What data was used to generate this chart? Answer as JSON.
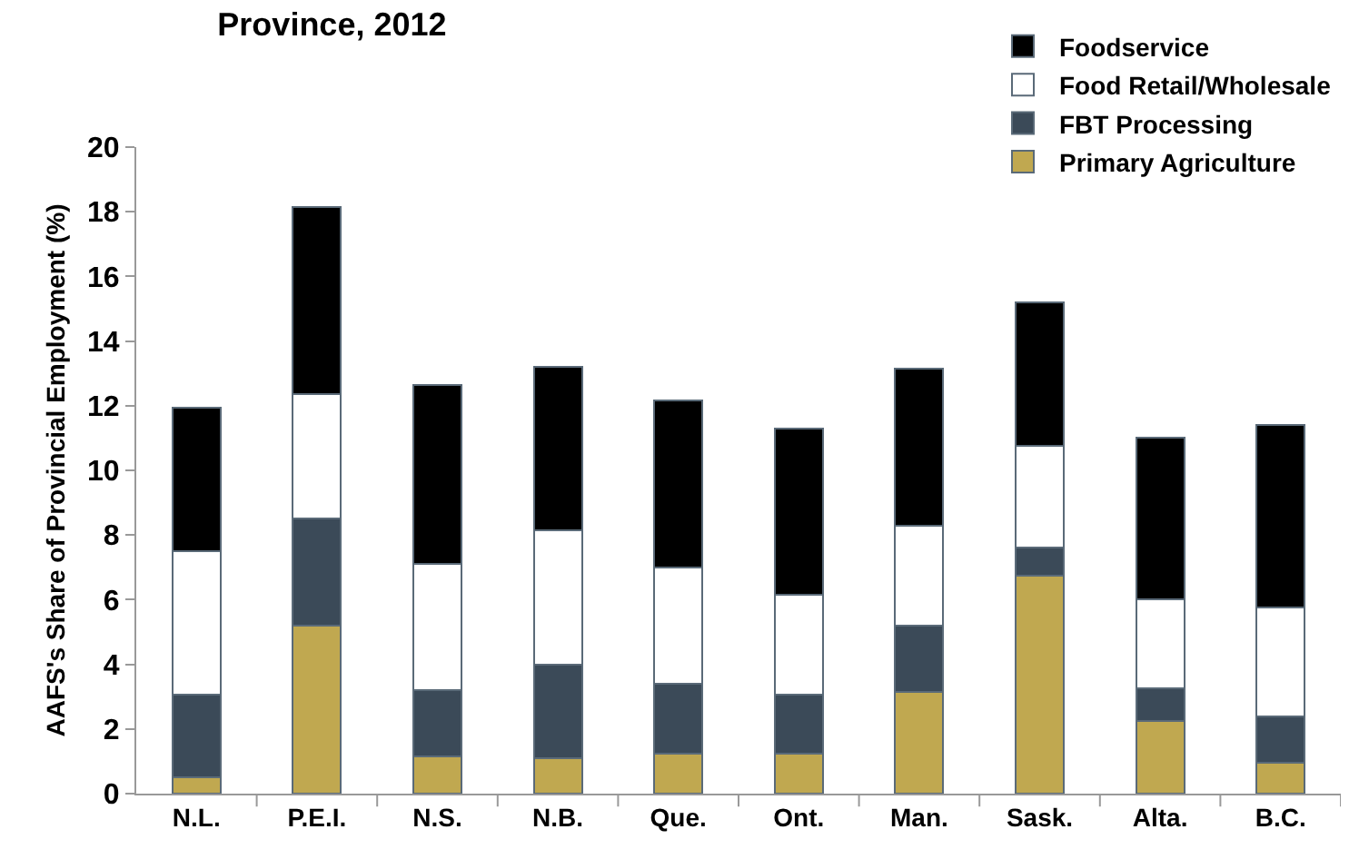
{
  "chart_data": {
    "type": "bar",
    "title": "Province, 2012",
    "ylabel": "AAFS's Share of Provincial Employment (%)",
    "categories": [
      "N.L.",
      "P.E.I.",
      "N.S.",
      "N.B.",
      "Que.",
      "Ont.",
      "Man.",
      "Sask.",
      "Alta.",
      "B.C."
    ],
    "stacked": true,
    "ylim": [
      0,
      20
    ],
    "yticks": [
      0,
      2,
      4,
      6,
      8,
      10,
      12,
      14,
      16,
      18,
      20
    ],
    "grid": false,
    "legend": "top right",
    "series": [
      {
        "name": "Primary Agriculture",
        "color": "#c0a850",
        "values": [
          0.5,
          5.2,
          1.15,
          1.1,
          1.25,
          1.25,
          3.15,
          6.75,
          2.25,
          0.95
        ]
      },
      {
        "name": "FBT Processing",
        "color": "#3b4a58",
        "values": [
          2.55,
          3.3,
          2.05,
          2.9,
          2.15,
          1.8,
          2.05,
          0.85,
          1.0,
          1.45
        ]
      },
      {
        "name": "Food Retail/Wholesale",
        "color": "#ffffff",
        "values": [
          4.45,
          3.85,
          3.9,
          4.15,
          3.6,
          3.1,
          3.1,
          3.15,
          2.75,
          3.35
        ]
      },
      {
        "name": "Foodservice",
        "color": "#000000",
        "values": [
          4.45,
          5.8,
          5.55,
          5.05,
          5.15,
          5.15,
          4.85,
          4.45,
          5.0,
          5.65
        ]
      }
    ]
  }
}
